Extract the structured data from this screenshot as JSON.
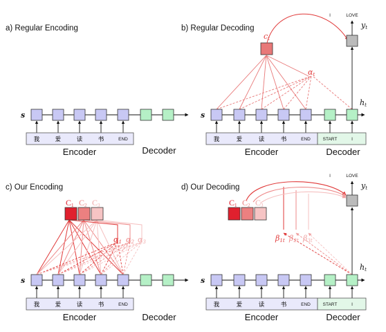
{
  "colors": {
    "encoder_state": "#c8c8f4",
    "decoder_state": "#b5f0c6",
    "context_primary": "#e87878",
    "output_state": "#bbbbbb",
    "attention_line": "#e03838",
    "strip_fill": "#e9e9fb",
    "strip_decoder_fill": "#e2f7e8"
  },
  "panels": {
    "a": {
      "title": "a) Regular Encoding",
      "state_symbol": "s",
      "encoder_label": "Encoder",
      "decoder_label": "Decoder",
      "tokens": [
        "我",
        "爱",
        "读",
        "书",
        "END"
      ]
    },
    "b": {
      "title": "b) Regular Decoding",
      "state_symbol": "s",
      "context_symbol": "c",
      "context_sub": "t",
      "alpha_symbol": "α",
      "alpha_sub": "t",
      "hidden_symbol": "h",
      "hidden_sub": "t",
      "output_symbol": "y",
      "output_sub": "t",
      "out_word_prev": "I",
      "out_word_cur": "LOVE",
      "encoder_label": "Encoder",
      "decoder_label": "Decoder",
      "tokens": [
        "我",
        "爱",
        "读",
        "书",
        "END"
      ],
      "decoder_tokens": [
        "START",
        "I"
      ]
    },
    "c": {
      "title": "c) Our Encoding",
      "state_symbol": "s",
      "contexts": [
        {
          "sym": "C",
          "sub": "1"
        },
        {
          "sym": "C",
          "sub": "2"
        },
        {
          "sym": "C",
          "sub": "3"
        }
      ],
      "alphas": [
        {
          "sym": "α",
          "sub": "1"
        },
        {
          "sym": "α",
          "sub": "2"
        },
        {
          "sym": "α",
          "sub": "3"
        }
      ],
      "encoder_label": "Encoder",
      "decoder_label": "Decoder",
      "tokens": [
        "我",
        "爱",
        "读",
        "书",
        "END"
      ]
    },
    "d": {
      "title": "d) Our Decoding",
      "state_symbol": "s",
      "contexts": [
        {
          "sym": "C",
          "sub": "1"
        },
        {
          "sym": "C",
          "sub": "2"
        },
        {
          "sym": "C",
          "sub": "3"
        }
      ],
      "betas": [
        {
          "sym": "β",
          "sub": "1t"
        },
        {
          "sym": "β",
          "sub": "2t"
        },
        {
          "sym": "β",
          "sub": "3t"
        }
      ],
      "hidden_symbol": "h",
      "hidden_sub": "t",
      "output_symbol": "y",
      "output_sub": "t",
      "out_word_prev": "I",
      "out_word_cur": "LOVE",
      "encoder_label": "Encoder",
      "decoder_label": "Decoder",
      "tokens": [
        "我",
        "爱",
        "读",
        "书",
        "END"
      ],
      "decoder_tokens": [
        "START",
        "I"
      ]
    }
  }
}
